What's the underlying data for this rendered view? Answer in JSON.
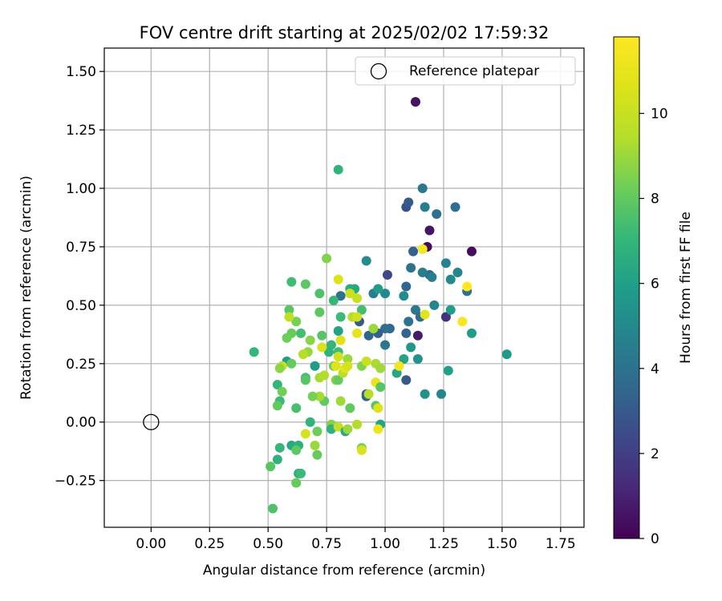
{
  "chart_data": {
    "type": "scatter",
    "title": "FOV centre drift starting at 2025/02/02 17:59:32",
    "xlabel": "Angular distance from reference (arcmin)",
    "ylabel": "Rotation from reference (arcmin)",
    "xlim": [
      -0.2,
      1.85
    ],
    "ylim": [
      -0.45,
      1.6
    ],
    "x_ticks": [
      0.0,
      0.25,
      0.5,
      0.75,
      1.0,
      1.25,
      1.5,
      1.75
    ],
    "x_tick_labels": [
      "0.00",
      "0.25",
      "0.50",
      "0.75",
      "1.00",
      "1.25",
      "1.50",
      "1.75"
    ],
    "y_ticks": [
      -0.25,
      0.0,
      0.25,
      0.5,
      0.75,
      1.0,
      1.25,
      1.5
    ],
    "y_tick_labels": [
      "−0.25",
      "0.00",
      "0.25",
      "0.50",
      "0.75",
      "1.00",
      "1.25",
      "1.50"
    ],
    "grid": true,
    "legend": {
      "placement": "top-right",
      "entries": [
        "Reference platepar"
      ]
    },
    "colorbar": {
      "label": "Hours from first FF file",
      "colormap": "viridis",
      "range": [
        0,
        11.8
      ],
      "ticks": [
        0,
        2,
        4,
        6,
        8,
        10
      ],
      "tick_labels": [
        "0",
        "2",
        "4",
        "6",
        "8",
        "10"
      ]
    },
    "reference": {
      "x": 0.0,
      "y": 0.0,
      "label": "Reference platepar"
    },
    "series": [
      {
        "value_label": "Hours from first FF file",
        "points": [
          [
            1.13,
            1.37,
            0.5
          ],
          [
            1.37,
            0.73,
            0.3
          ],
          [
            1.19,
            0.82,
            0.6
          ],
          [
            1.18,
            0.75,
            0.2
          ],
          [
            1.14,
            0.37,
            0.8
          ],
          [
            1.26,
            0.45,
            1.5
          ],
          [
            1.01,
            0.63,
            2.3
          ],
          [
            1.09,
            0.92,
            2.6
          ],
          [
            1.1,
            0.94,
            3.0
          ],
          [
            1.12,
            0.73,
            3.3
          ],
          [
            1.09,
            0.58,
            3.5
          ],
          [
            1.19,
            0.63,
            3.6
          ],
          [
            1.3,
            0.92,
            3.8
          ],
          [
            1.22,
            0.89,
            3.9
          ],
          [
            1.16,
            1.0,
            4.2
          ],
          [
            1.17,
            0.92,
            4.5
          ],
          [
            1.11,
            0.66,
            4.1
          ],
          [
            1.16,
            0.64,
            4.4
          ],
          [
            1.2,
            0.62,
            4.6
          ],
          [
            1.26,
            0.68,
            4.7
          ],
          [
            1.31,
            0.64,
            4.9
          ],
          [
            1.35,
            0.56,
            3.9
          ],
          [
            1.28,
            0.61,
            5.0
          ],
          [
            1.21,
            0.5,
            4.8
          ],
          [
            1.13,
            0.48,
            4.3
          ],
          [
            1.1,
            0.43,
            4.0
          ],
          [
            1.15,
            0.45,
            3.7
          ],
          [
            1.09,
            0.38,
            3.4
          ],
          [
            1.02,
            0.4,
            3.6
          ],
          [
            1.0,
            0.4,
            3.9
          ],
          [
            0.97,
            0.38,
            3.2
          ],
          [
            0.93,
            0.37,
            3.5
          ],
          [
            0.95,
            0.55,
            4.5
          ],
          [
            1.0,
            0.55,
            5.0
          ],
          [
            0.92,
            0.69,
            5.2
          ],
          [
            1.08,
            0.54,
            5.1
          ],
          [
            1.0,
            0.33,
            4.2
          ],
          [
            1.11,
            0.32,
            5.6
          ],
          [
            1.14,
            0.27,
            5.4
          ],
          [
            1.08,
            0.27,
            6.2
          ],
          [
            1.05,
            0.21,
            6.3
          ],
          [
            1.09,
            0.18,
            3.0
          ],
          [
            1.17,
            0.12,
            5.3
          ],
          [
            1.24,
            0.12,
            4.8
          ],
          [
            1.27,
            0.22,
            6.0
          ],
          [
            1.28,
            0.48,
            5.9
          ],
          [
            1.37,
            0.38,
            5.8
          ],
          [
            1.52,
            0.29,
            5.7
          ],
          [
            0.92,
            0.12,
            3.0
          ],
          [
            0.92,
            0.11,
            3.4
          ],
          [
            0.89,
            0.43,
            3.0
          ],
          [
            0.97,
            0.57,
            5.8
          ],
          [
            0.8,
            1.08,
            6.9
          ],
          [
            0.75,
            0.7,
            8.6
          ],
          [
            0.66,
            0.59,
            7.9
          ],
          [
            0.6,
            0.6,
            7.3
          ],
          [
            0.72,
            0.55,
            7.6
          ],
          [
            0.81,
            0.54,
            4.0
          ],
          [
            0.85,
            0.57,
            6.6
          ],
          [
            0.87,
            0.57,
            6.4
          ],
          [
            0.78,
            0.52,
            7.1
          ],
          [
            0.9,
            0.48,
            7.4
          ],
          [
            0.81,
            0.45,
            7.2
          ],
          [
            0.8,
            0.39,
            6.2
          ],
          [
            0.72,
            0.47,
            7.9
          ],
          [
            0.59,
            0.48,
            7.8
          ],
          [
            0.62,
            0.43,
            8.4
          ],
          [
            0.59,
            0.45,
            9.7
          ],
          [
            0.6,
            0.38,
            8.1
          ],
          [
            0.64,
            0.38,
            7.4
          ],
          [
            0.68,
            0.35,
            8.7
          ],
          [
            0.58,
            0.36,
            8.2
          ],
          [
            0.73,
            0.37,
            7.8
          ],
          [
            0.77,
            0.33,
            7.0
          ],
          [
            0.76,
            0.3,
            6.8
          ],
          [
            0.8,
            0.3,
            7.3
          ],
          [
            0.73,
            0.32,
            10.5
          ],
          [
            0.84,
            0.27,
            9.0
          ],
          [
            0.8,
            0.28,
            10.2
          ],
          [
            0.78,
            0.24,
            8.3
          ],
          [
            0.7,
            0.24,
            5.8
          ],
          [
            0.67,
            0.3,
            8.9
          ],
          [
            0.65,
            0.29,
            9.5
          ],
          [
            0.58,
            0.26,
            6.0
          ],
          [
            0.6,
            0.25,
            8.1
          ],
          [
            0.56,
            0.24,
            10.0
          ],
          [
            0.55,
            0.23,
            8.8
          ],
          [
            0.44,
            0.3,
            7.0
          ],
          [
            0.54,
            0.16,
            7.0
          ],
          [
            0.56,
            0.13,
            8.3
          ],
          [
            0.55,
            0.09,
            7.2
          ],
          [
            0.54,
            0.07,
            8.0
          ],
          [
            0.66,
            0.19,
            7.4
          ],
          [
            0.66,
            0.18,
            7.8
          ],
          [
            0.72,
            0.19,
            9.2
          ],
          [
            0.74,
            0.2,
            9.4
          ],
          [
            0.79,
            0.18,
            8.6
          ],
          [
            0.8,
            0.18,
            8.1
          ],
          [
            0.82,
            0.21,
            9.6
          ],
          [
            0.79,
            0.24,
            10.7
          ],
          [
            0.83,
            0.23,
            10.9
          ],
          [
            0.84,
            0.24,
            10.4
          ],
          [
            0.9,
            0.24,
            8.6
          ],
          [
            0.92,
            0.26,
            10.1
          ],
          [
            0.96,
            0.25,
            9.3
          ],
          [
            0.98,
            0.23,
            9.1
          ],
          [
            0.96,
            0.17,
            11.0
          ],
          [
            0.98,
            0.15,
            7.8
          ],
          [
            0.93,
            0.12,
            9.5
          ],
          [
            0.96,
            0.07,
            7.8
          ],
          [
            0.97,
            0.06,
            10.7
          ],
          [
            0.85,
            0.06,
            8.0
          ],
          [
            0.81,
            0.09,
            9.1
          ],
          [
            0.74,
            0.09,
            8.0
          ],
          [
            0.72,
            0.11,
            9.2
          ],
          [
            0.69,
            0.11,
            8.4
          ],
          [
            0.62,
            0.06,
            7.5
          ],
          [
            0.68,
            0.0,
            6.9
          ],
          [
            0.77,
            -0.01,
            8.6
          ],
          [
            0.77,
            -0.03,
            6.8
          ],
          [
            0.8,
            -0.02,
            9.9
          ],
          [
            0.83,
            -0.04,
            6.5
          ],
          [
            0.84,
            -0.03,
            9.0
          ],
          [
            0.88,
            -0.01,
            9.4
          ],
          [
            0.98,
            -0.01,
            6.2
          ],
          [
            0.97,
            -0.03,
            11.2
          ],
          [
            0.71,
            -0.04,
            8.2
          ],
          [
            0.66,
            -0.05,
            10.3
          ],
          [
            0.6,
            -0.1,
            6.4
          ],
          [
            0.63,
            -0.1,
            6.7
          ],
          [
            0.62,
            -0.12,
            7.9
          ],
          [
            0.7,
            -0.1,
            9.0
          ],
          [
            0.71,
            -0.14,
            8.1
          ],
          [
            0.9,
            -0.11,
            8.4
          ],
          [
            0.9,
            -0.12,
            10.5
          ],
          [
            0.55,
            -0.11,
            7.0
          ],
          [
            0.54,
            -0.16,
            6.8
          ],
          [
            0.51,
            -0.19,
            7.8
          ],
          [
            0.63,
            -0.22,
            6.6
          ],
          [
            0.64,
            -0.22,
            7.2
          ],
          [
            0.62,
            -0.26,
            8.1
          ],
          [
            0.52,
            -0.37,
            7.6
          ],
          [
            1.17,
            0.46,
            10.8
          ],
          [
            1.16,
            0.74,
            11.5
          ],
          [
            1.35,
            0.58,
            11.8
          ],
          [
            1.33,
            0.43,
            11.6
          ],
          [
            1.06,
            0.24,
            11.4
          ],
          [
            0.85,
            0.55,
            10.1
          ],
          [
            0.88,
            0.53,
            10.0
          ],
          [
            0.8,
            0.61,
            10.6
          ],
          [
            0.86,
            0.45,
            9.5
          ],
          [
            0.88,
            0.45,
            10.2
          ],
          [
            0.88,
            0.38,
            10.9
          ],
          [
            0.95,
            0.4,
            9.0
          ],
          [
            0.81,
            0.35,
            10.7
          ]
        ]
      }
    ]
  }
}
